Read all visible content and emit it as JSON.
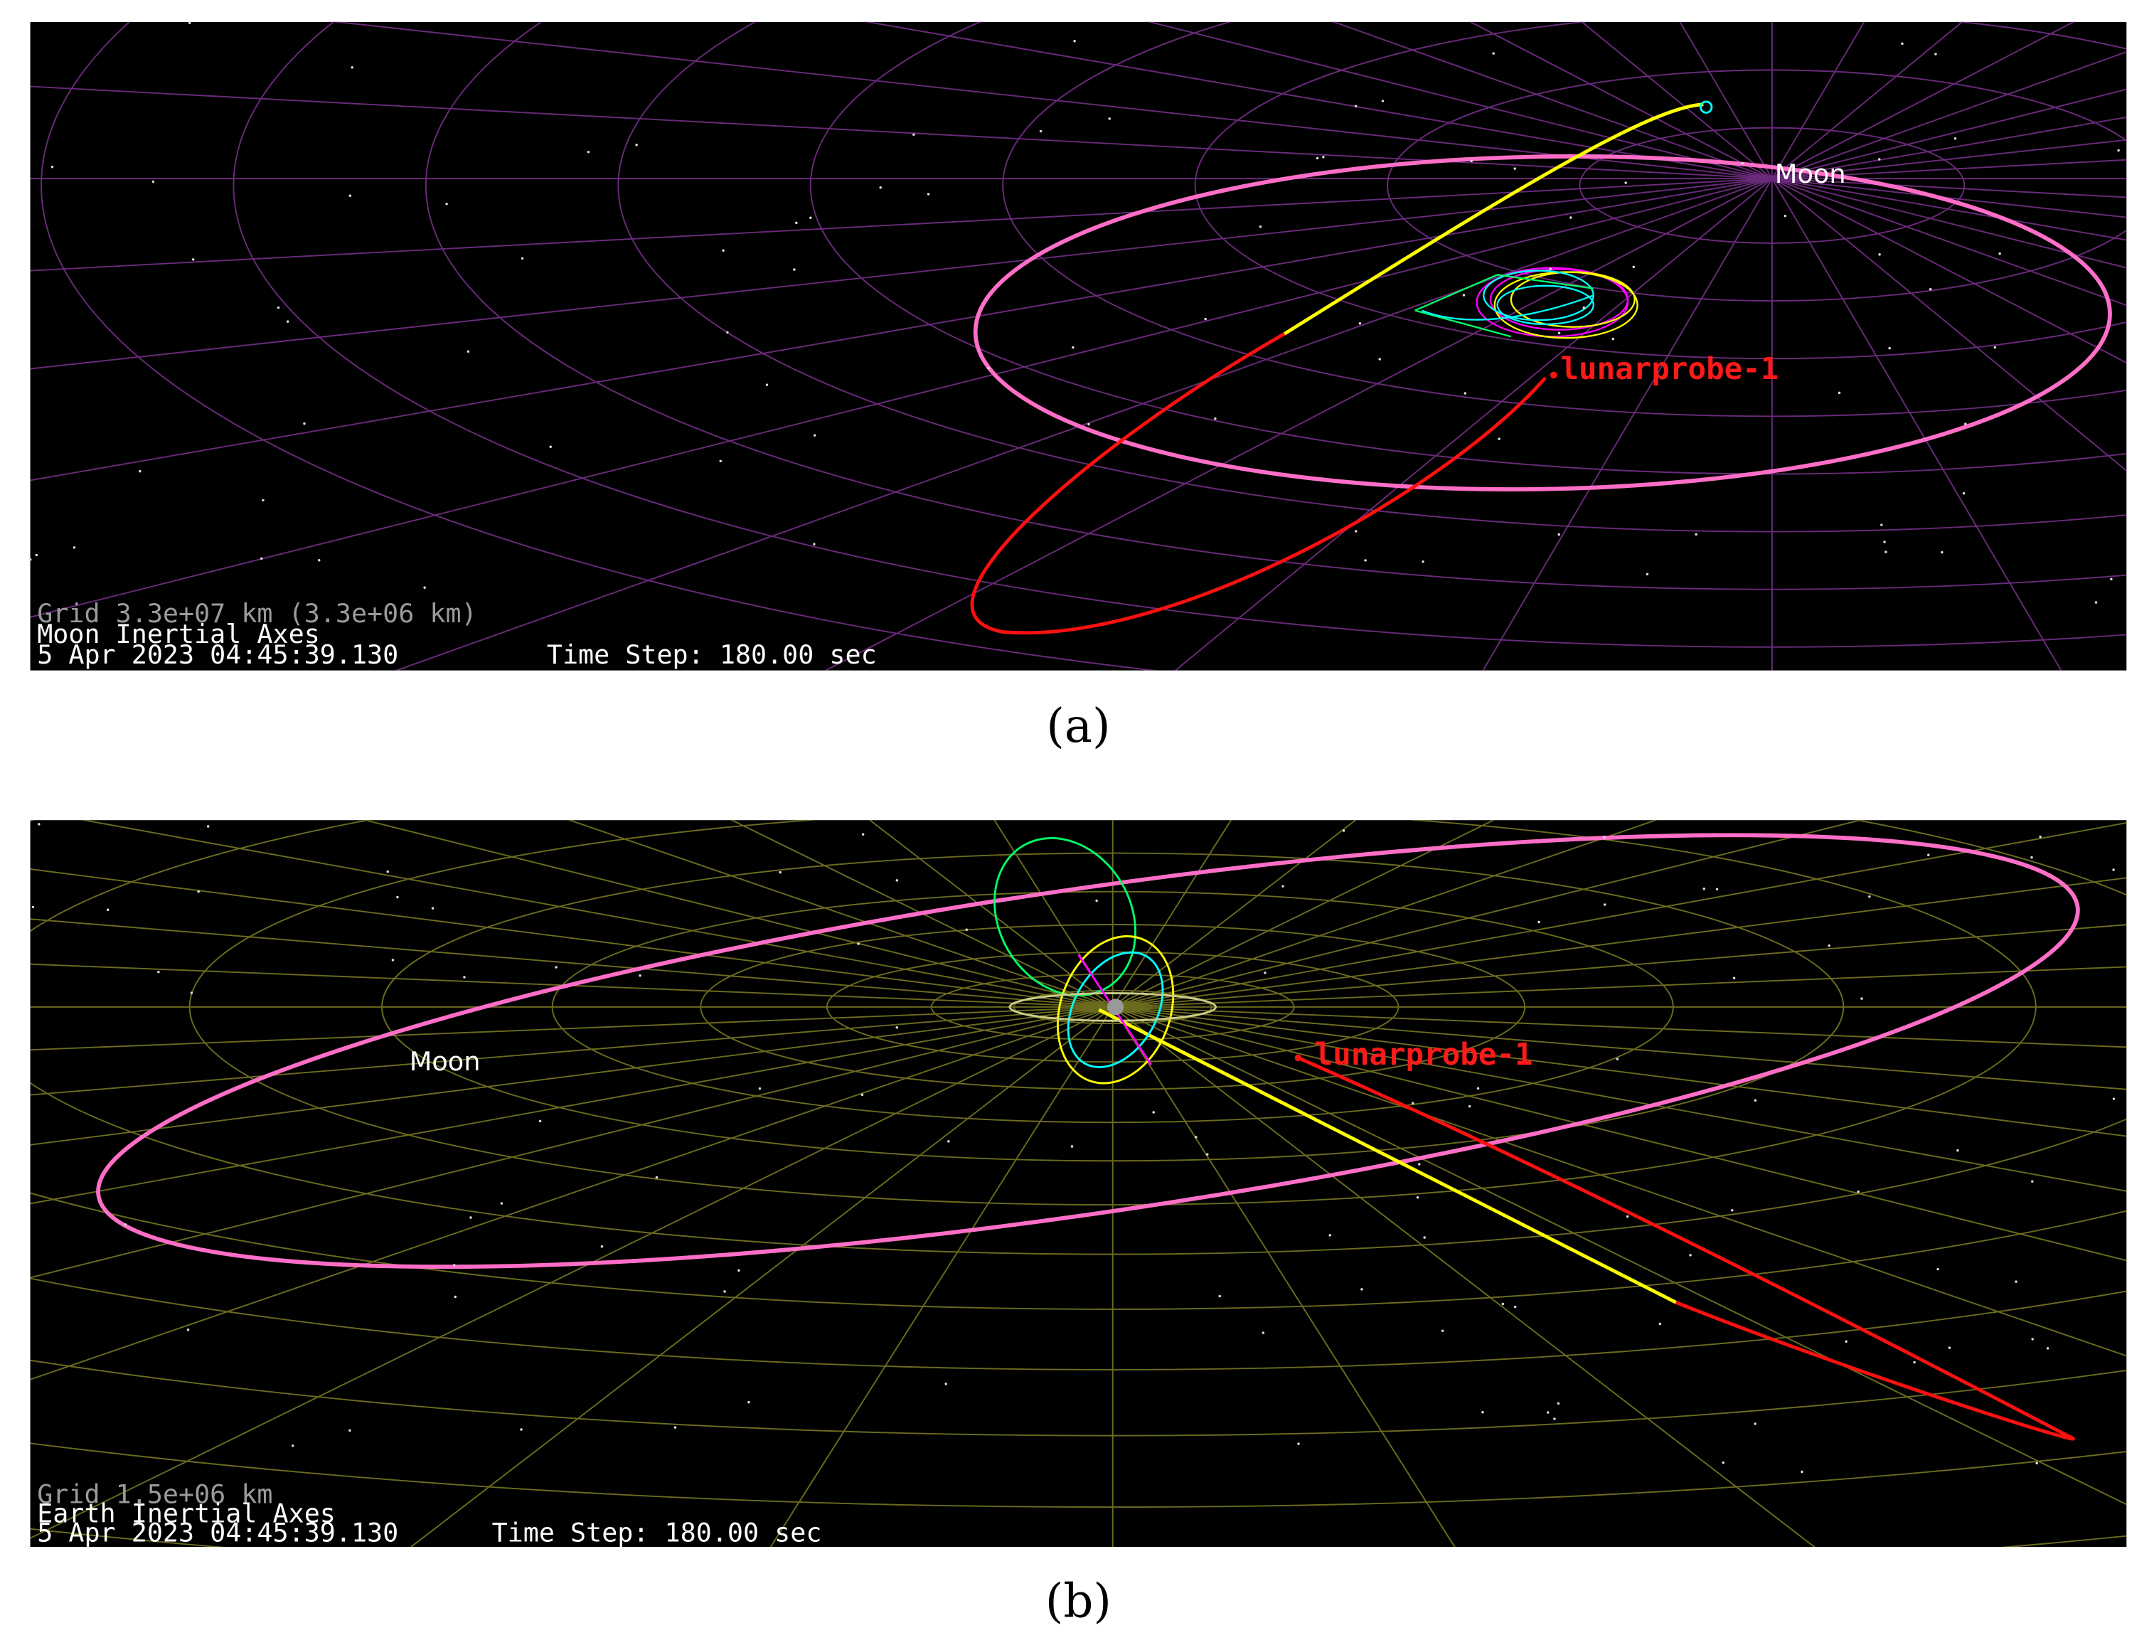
{
  "panels": [
    {
      "overlay": {
        "grid": "Grid 3.3e+07 km (3.3e+06 km)",
        "axes": "Moon Inertial Axes",
        "time": "5 Apr 2023 04:45:39.130",
        "time_step": "Time Step: 180.00 sec"
      },
      "labels": {
        "moon": "Moon",
        "probe": "lunarprobe-1"
      },
      "caption": "(a)"
    },
    {
      "overlay": {
        "grid": "Grid 1.5e+06 km",
        "axes": "Earth Inertial Axes",
        "time": "5 Apr 2023 04:45:39.130",
        "time_step": "Time Step: 180.00 sec"
      },
      "labels": {
        "moon": "Moon",
        "probe": "lunarprobe-1"
      },
      "caption": "(b)"
    }
  ]
}
